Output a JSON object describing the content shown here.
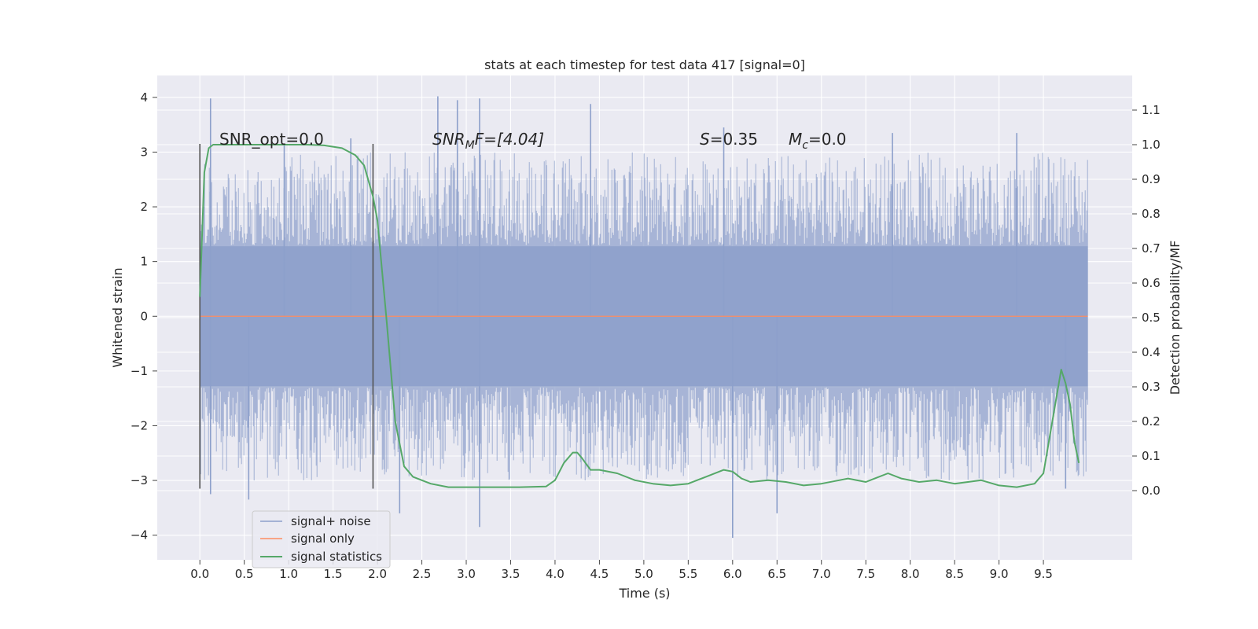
{
  "chart_data": {
    "type": "line",
    "title": "stats at each timestep for test data 417 [signal=0]",
    "xlabel": "Time (s)",
    "ylabel": "Whitened strain",
    "y2label": "Detection probability/MF",
    "xlim": [
      -0.48,
      10.5
    ],
    "ylim": [
      -4.45,
      4.4
    ],
    "y2lim": [
      -0.2,
      1.2
    ],
    "xticks": [
      "0.0",
      "0.5",
      "1.0",
      "1.5",
      "2.0",
      "2.5",
      "3.0",
      "3.5",
      "4.0",
      "4.5",
      "5.0",
      "5.5",
      "6.0",
      "6.5",
      "7.0",
      "7.5",
      "8.0",
      "8.5",
      "9.0",
      "9.5"
    ],
    "yticks": [
      "4",
      "3",
      "2",
      "1",
      "0",
      "−1",
      "−2",
      "−3",
      "−4"
    ],
    "y2ticks": [
      "1.1",
      "1.0",
      "0.9",
      "0.8",
      "0.7",
      "0.6",
      "0.5",
      "0.4",
      "0.3",
      "0.2",
      "0.1",
      "0.0"
    ],
    "grid": true,
    "legend_position": "lower-left",
    "annotations": {
      "snr_opt": "SNR_opt=0.0",
      "snr_mf_prefix": "SNR",
      "snr_mf_sub": "M",
      "snr_mf_suffix": "F=[4.04]",
      "s_prefix": "S",
      "s_value": "=0.35",
      "mc_prefix": "M",
      "mc_sub": "c",
      "mc_value": "=0.0"
    },
    "vertical_markers_x": [
      0.0,
      1.95
    ],
    "series": [
      {
        "name": "signal+ noise",
        "color": "#8da0cb",
        "description_of_values": "whitened strain noise, approx. ±1.3 dense band with spikes up to ~±4, spanning 0–10 s",
        "x_range": [
          0.0,
          10.0
        ],
        "band": [
          -1.28,
          1.28
        ],
        "spikes": [
          {
            "x": 0.12,
            "y": 3.98
          },
          {
            "x": 0.12,
            "y": -3.25
          },
          {
            "x": 0.55,
            "y": -3.35
          },
          {
            "x": 0.95,
            "y": 3.15
          },
          {
            "x": 1.7,
            "y": 3.25
          },
          {
            "x": 2.25,
            "y": -3.6
          },
          {
            "x": 2.68,
            "y": 4.02
          },
          {
            "x": 2.9,
            "y": 3.95
          },
          {
            "x": 3.15,
            "y": 3.98
          },
          {
            "x": 3.15,
            "y": -3.85
          },
          {
            "x": 4.4,
            "y": 3.88
          },
          {
            "x": 5.9,
            "y": 3.45
          },
          {
            "x": 6.0,
            "y": -4.05
          },
          {
            "x": 6.5,
            "y": -3.6
          },
          {
            "x": 7.8,
            "y": 3.35
          },
          {
            "x": 9.2,
            "y": 3.35
          },
          {
            "x": 9.75,
            "y": -3.15
          }
        ]
      },
      {
        "name": "signal only",
        "color": "#fc8d62",
        "x": [
          0.0,
          10.0
        ],
        "y": [
          0.0,
          0.0
        ]
      },
      {
        "name": "signal statistics",
        "color": "#55a868",
        "axis": "right",
        "x": [
          0.0,
          0.05,
          0.1,
          0.15,
          0.2,
          0.3,
          0.5,
          0.8,
          1.0,
          1.2,
          1.4,
          1.6,
          1.75,
          1.85,
          1.95,
          2.0,
          2.1,
          2.2,
          2.3,
          2.4,
          2.6,
          2.8,
          3.0,
          3.3,
          3.6,
          3.9,
          4.0,
          4.1,
          4.2,
          4.25,
          4.3,
          4.4,
          4.5,
          4.7,
          4.9,
          5.1,
          5.3,
          5.5,
          5.7,
          5.9,
          6.0,
          6.1,
          6.2,
          6.4,
          6.6,
          6.8,
          7.0,
          7.2,
          7.3,
          7.5,
          7.6,
          7.75,
          7.9,
          8.1,
          8.3,
          8.5,
          8.8,
          9.0,
          9.2,
          9.4,
          9.5,
          9.6,
          9.7,
          9.75,
          9.8,
          9.85,
          9.9
        ],
        "y": [
          0.56,
          0.92,
          0.99,
          1.0,
          1.0,
          1.0,
          1.0,
          1.0,
          1.0,
          1.0,
          0.998,
          0.99,
          0.97,
          0.94,
          0.85,
          0.78,
          0.5,
          0.2,
          0.07,
          0.04,
          0.02,
          0.01,
          0.01,
          0.01,
          0.01,
          0.012,
          0.03,
          0.08,
          0.11,
          0.11,
          0.095,
          0.06,
          0.06,
          0.05,
          0.03,
          0.02,
          0.015,
          0.02,
          0.04,
          0.06,
          0.055,
          0.035,
          0.025,
          0.03,
          0.025,
          0.015,
          0.02,
          0.03,
          0.035,
          0.025,
          0.035,
          0.05,
          0.035,
          0.025,
          0.03,
          0.02,
          0.03,
          0.015,
          0.01,
          0.02,
          0.05,
          0.2,
          0.35,
          0.31,
          0.25,
          0.14,
          0.08
        ]
      }
    ]
  }
}
